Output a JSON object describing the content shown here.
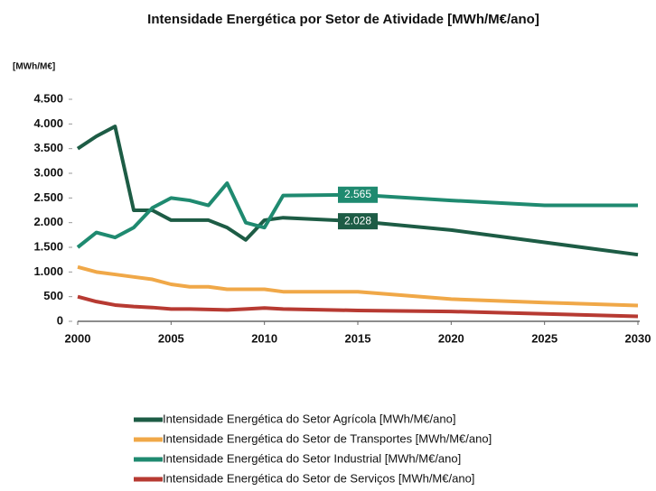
{
  "chart_data": {
    "type": "line",
    "title": "Intensidade Energética por Setor de Atividade [MWh/M€/ano]",
    "y_label": "[MWh/M€]",
    "x": [
      2000,
      2001,
      2002,
      2003,
      2004,
      2005,
      2006,
      2007,
      2008,
      2009,
      2010,
      2011,
      2015,
      2020,
      2025,
      2030
    ],
    "series": [
      {
        "name": "Intensidade Energética do Setor Agrícola [MWh/M€/ano]",
        "color": "#1d5c45",
        "values": [
          3500,
          3750,
          3950,
          2250,
          2250,
          2050,
          2050,
          2050,
          1900,
          1650,
          2050,
          2100,
          2028,
          1850,
          1600,
          1350
        ],
        "value_labels": [
          null,
          null,
          null,
          null,
          null,
          null,
          null,
          null,
          null,
          null,
          null,
          null,
          "2.028",
          null,
          null,
          null
        ]
      },
      {
        "name": "Intensidade Energética do Setor de Transportes [MWh/M€/ano]",
        "color": "#f0a848",
        "values": [
          1100,
          1000,
          950,
          900,
          850,
          750,
          700,
          700,
          650,
          650,
          650,
          600,
          600,
          450,
          380,
          320
        ]
      },
      {
        "name": "Intensidade Energética do Setor Industrial [MWh/M€/ano]",
        "color": "#1f8a70",
        "values": [
          1500,
          1800,
          1700,
          1900,
          2300,
          2500,
          2450,
          2350,
          2800,
          2000,
          1900,
          2550,
          2565,
          2450,
          2350,
          2350
        ],
        "value_labels": [
          null,
          null,
          null,
          null,
          null,
          null,
          null,
          null,
          null,
          null,
          null,
          null,
          "2.565",
          null,
          null,
          null
        ]
      },
      {
        "name": "Intensidade Energética do Setor de Serviços [MWh/M€/ano]",
        "color": "#b73a32",
        "values": [
          500,
          400,
          330,
          300,
          280,
          250,
          250,
          240,
          230,
          250,
          270,
          250,
          220,
          200,
          150,
          100
        ]
      }
    ],
    "xlim": [
      2000,
      2030
    ],
    "xticks": [
      2000,
      2005,
      2010,
      2015,
      2020,
      2025,
      2030
    ],
    "ylim": [
      0,
      4500
    ],
    "yticks": [
      0,
      500,
      {
        "value": 1000,
        "label": "1.000"
      },
      {
        "value": 1500,
        "label": "1.500"
      },
      {
        "value": 2000,
        "label": "2.000"
      },
      {
        "value": 2500,
        "label": "2.500"
      },
      {
        "value": 3000,
        "label": "3.000"
      },
      {
        "value": 3500,
        "label": "3.500"
      },
      {
        "value": 4000,
        "label": "4.000"
      },
      {
        "value": 4500,
        "label": "4.500"
      }
    ],
    "grid": false
  }
}
